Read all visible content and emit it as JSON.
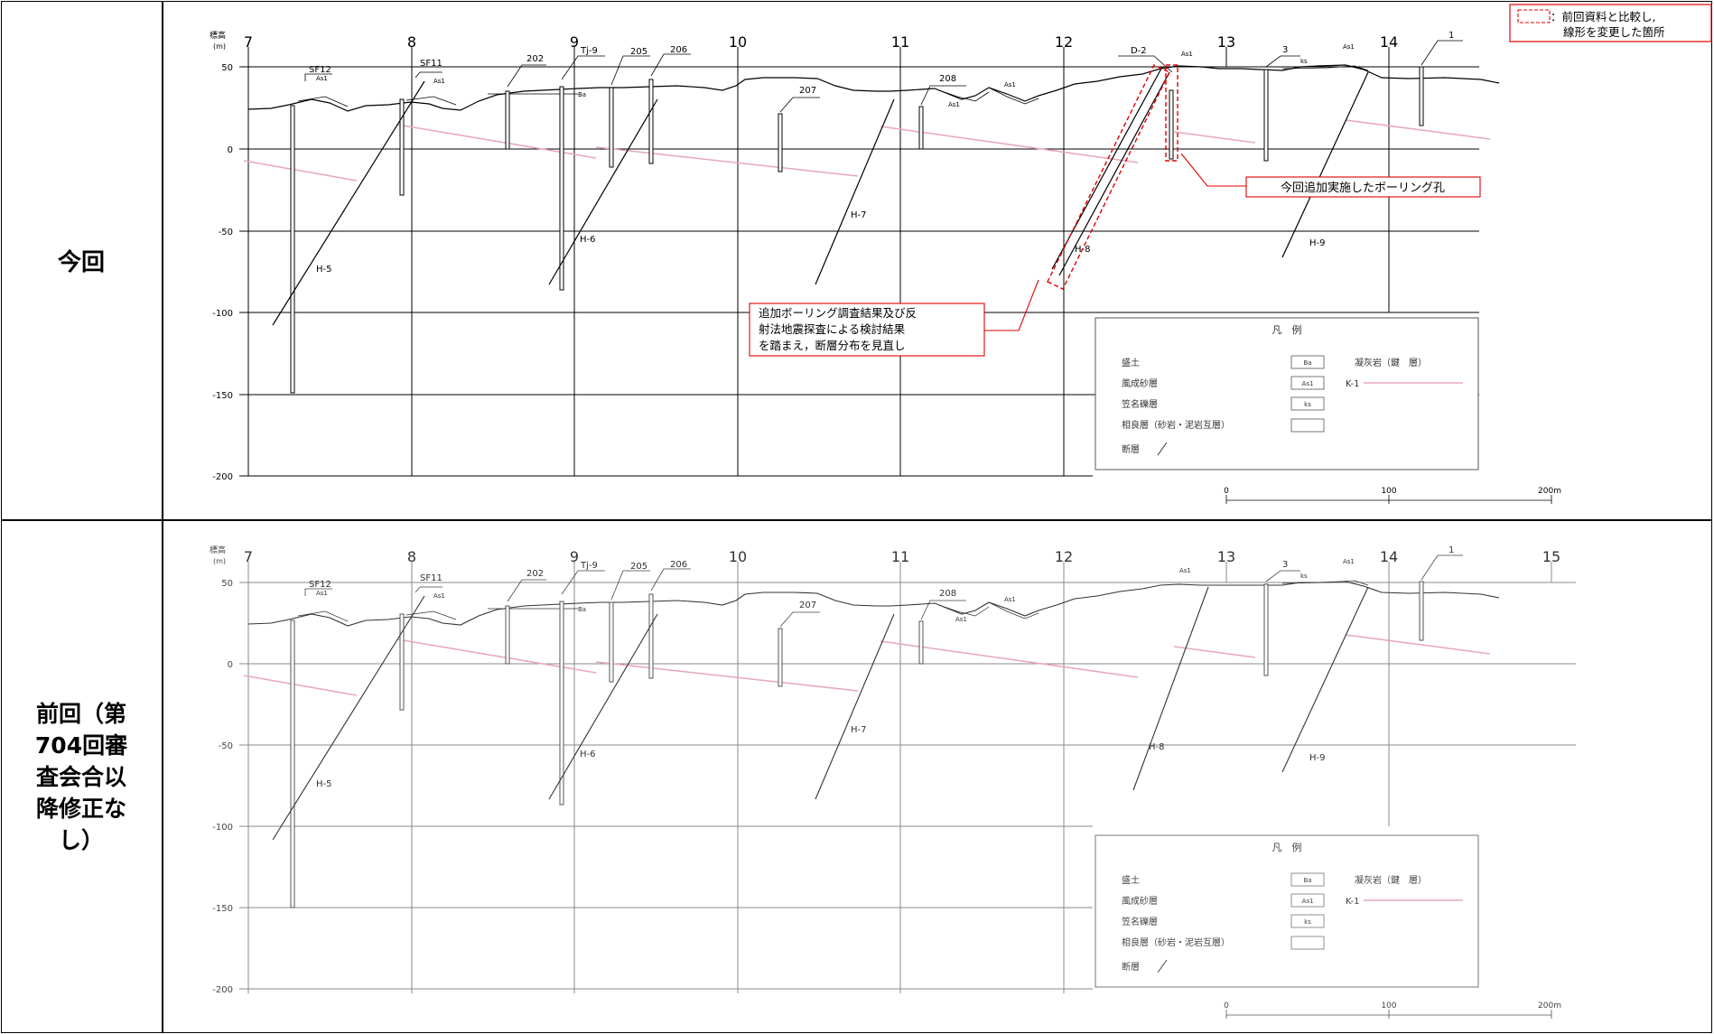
{
  "labels": {
    "current": "今回",
    "previous_lines": [
      "前回（第",
      "704回審",
      "査会合以",
      "降修正な",
      "し）"
    ]
  },
  "axis": {
    "y_title": "標高",
    "y_unit": "(m)",
    "y_ticks": [
      50,
      0,
      -50,
      -100,
      -150,
      -200
    ],
    "y_tick_labels": [
      "50",
      "0",
      "-50",
      "-100",
      "-150",
      "-200"
    ],
    "stations": [
      "7",
      "8",
      "9",
      "10",
      "11",
      "12",
      "13",
      "14"
    ],
    "station_15": "15"
  },
  "boreholes_top": {
    "SF12": "SF12",
    "SF11": "SF11",
    "b202": "202",
    "TJ9": "Tj-9",
    "b205": "205",
    "b206": "206",
    "b207": "207",
    "b208": "208",
    "D2": "D-2",
    "b3": "3",
    "b1": "1"
  },
  "strata": {
    "As1": "As1",
    "Ba": "Ba",
    "ks": "ks"
  },
  "faults": [
    "H-5",
    "H-6",
    "H-7",
    "H-8",
    "H-9"
  ],
  "legend": {
    "title": "凡　例",
    "moriodo": "盛土",
    "fusei": "風成砂層",
    "kuruma": "笠名礫層",
    "sotai": "相良層（砂岩・泥岩互層）",
    "danso": "断層",
    "Ba": "Ba",
    "As1": "As1",
    "ks": "ks",
    "gyokai": "凝灰岩（鍵　層）",
    "K1": "K-1"
  },
  "scale": {
    "zero": "0",
    "hundred": "100",
    "two_hundred": "200m"
  },
  "annotations": {
    "legend_box_line1": "：前回資料と比較し,",
    "legend_box_line2": "線形を変更した箇所",
    "new_borehole": "今回追加実施したボーリング孔",
    "review_line1": "追加ボーリング調査結果及び反",
    "review_line2": "射法地震探査による検討結果",
    "review_line3": "を踏まえ，断層分布を見直し"
  },
  "colors": {
    "key_layer": "#e8a8b8",
    "callout": "#e00000",
    "grid": "#000000"
  }
}
